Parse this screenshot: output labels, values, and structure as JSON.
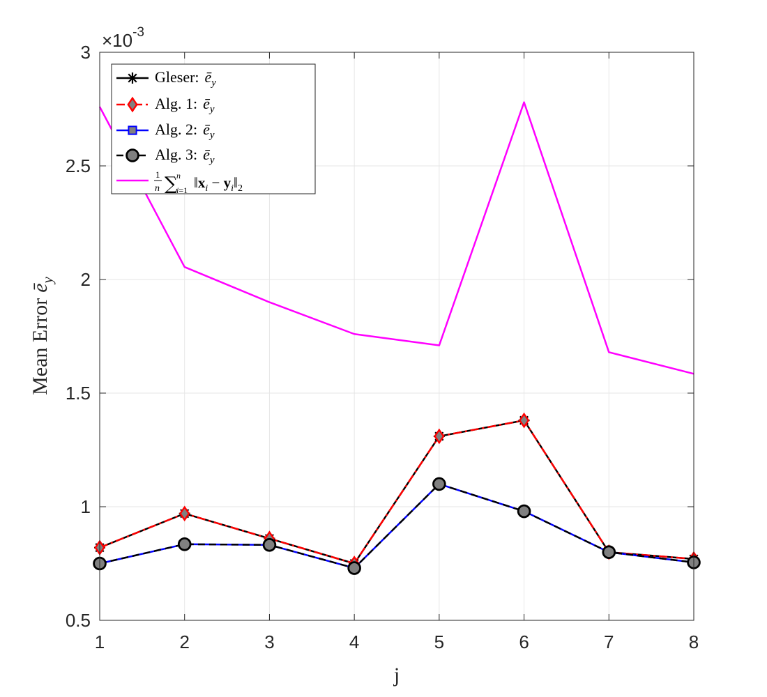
{
  "chart_data": {
    "type": "line",
    "title": "",
    "xlabel": "j",
    "ylabel": "Mean Error",
    "ylabel_symbol": "ē",
    "ylabel_subscript": "y",
    "y_exponent_base": "×10",
    "y_exponent": "-3",
    "x": [
      1,
      2,
      3,
      4,
      5,
      6,
      7,
      8
    ],
    "xlim": [
      1,
      8
    ],
    "ylim": [
      0.0005,
      0.003
    ],
    "x_ticks": [
      1,
      2,
      3,
      4,
      5,
      6,
      7,
      8
    ],
    "y_ticks": [
      0.0005,
      0.001,
      0.0015,
      0.002,
      0.0025,
      0.003
    ],
    "y_tick_labels": [
      "0.5",
      "1",
      "1.5",
      "2",
      "2.5",
      "3"
    ],
    "grid": true,
    "legend_position": "top-left",
    "series": [
      {
        "name": "Gleser: ē_y",
        "label_text": "Gleser:",
        "values": [
          0.00082,
          0.00097,
          0.00086,
          0.00075,
          0.00131,
          0.00138,
          0.0008,
          0.00077
        ],
        "color": "#000000",
        "dash": "solid",
        "marker": "asterisk",
        "marker_fill": "#000000"
      },
      {
        "name": "Alg. 1: ē_y",
        "label_text": "Alg.  1:",
        "values": [
          0.00082,
          0.00097,
          0.00086,
          0.00075,
          0.00131,
          0.00138,
          0.0008,
          0.00077
        ],
        "color": "#ff0000",
        "dash": "dashdot",
        "marker": "diamond",
        "marker_fill": "#808080"
      },
      {
        "name": "Alg. 2: ē_y",
        "label_text": "Alg.  2:",
        "values": [
          0.00075,
          0.000835,
          0.000832,
          0.00073,
          0.0011,
          0.00098,
          0.0008,
          0.000755
        ],
        "color": "#0000ff",
        "dash": "solid",
        "marker": "square",
        "marker_fill": "#808080"
      },
      {
        "name": "Alg. 3: ē_y",
        "label_text": "Alg.  3:",
        "values": [
          0.00075,
          0.000835,
          0.000832,
          0.00073,
          0.0011,
          0.00098,
          0.0008,
          0.000755
        ],
        "color": "#000000",
        "dash": "dashed",
        "marker": "circle",
        "marker_fill": "#808080"
      },
      {
        "name": "(1/n) Σ_{i=1}^{n} ||x_i − y_i||_2",
        "label_text": "",
        "values": [
          0.00276,
          0.002055,
          0.0019,
          0.00176,
          0.00171,
          0.00278,
          0.00168,
          0.001585
        ],
        "color": "#ff00ff",
        "dash": "solid",
        "marker": "none",
        "marker_fill": "none"
      }
    ]
  }
}
